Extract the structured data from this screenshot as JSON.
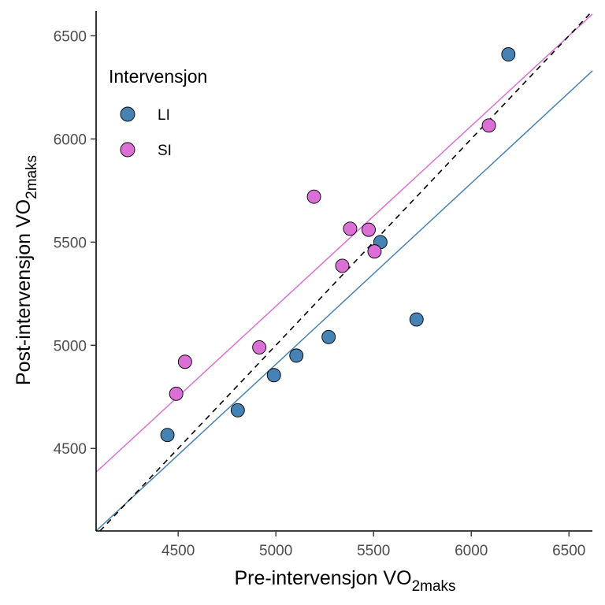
{
  "chart_data": {
    "type": "scatter",
    "xlabel": {
      "main": "Pre-intervensjon VO",
      "sub": "2maks"
    },
    "ylabel": {
      "main": "Post-intervensjon VO",
      "sub": "2maks"
    },
    "xlim": [
      4080,
      6620
    ],
    "ylim": [
      4100,
      6620
    ],
    "xticks": [
      4500,
      5000,
      5500,
      6000,
      6500
    ],
    "yticks": [
      4500,
      5000,
      5500,
      6000,
      6500
    ],
    "grid": false,
    "legend": {
      "title": "Intervensjon",
      "position": "top-left"
    },
    "reference_line": {
      "type": "identity",
      "style": "dashed",
      "color": "#000000"
    },
    "series": [
      {
        "name": "LI",
        "color": "#4682B4",
        "points": [
          {
            "x": 4445,
            "y": 4565
          },
          {
            "x": 4805,
            "y": 4685
          },
          {
            "x": 4990,
            "y": 4855
          },
          {
            "x": 5105,
            "y": 4950
          },
          {
            "x": 5270,
            "y": 5040
          },
          {
            "x": 5535,
            "y": 5500
          },
          {
            "x": 5720,
            "y": 5125
          },
          {
            "x": 6190,
            "y": 6410
          }
        ],
        "fit_line": {
          "x": [
            4080,
            6620
          ],
          "y": [
            4100,
            6330
          ]
        }
      },
      {
        "name": "SI",
        "color": "#DA70D6",
        "points": [
          {
            "x": 4490,
            "y": 4765
          },
          {
            "x": 4535,
            "y": 4920
          },
          {
            "x": 4915,
            "y": 4990
          },
          {
            "x": 5195,
            "y": 5720
          },
          {
            "x": 5340,
            "y": 5385
          },
          {
            "x": 5380,
            "y": 5565
          },
          {
            "x": 5475,
            "y": 5560
          },
          {
            "x": 5505,
            "y": 5455
          },
          {
            "x": 6090,
            "y": 6065
          }
        ],
        "fit_line": {
          "x": [
            4080,
            6620
          ],
          "y": [
            4385,
            6605
          ]
        }
      }
    ]
  }
}
